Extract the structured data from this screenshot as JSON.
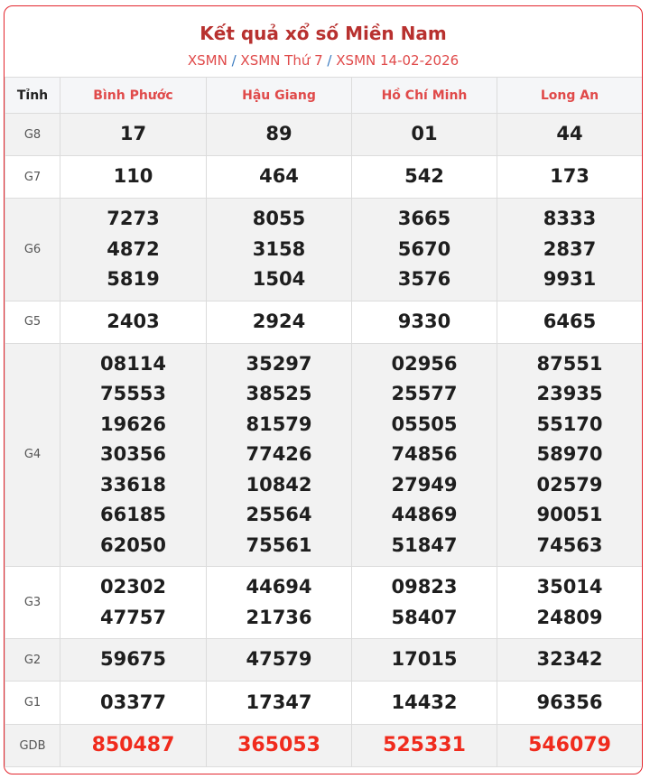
{
  "title": "Kết quả xổ số Miền Nam",
  "breadcrumb": [
    "XSMN",
    "XSMN Thứ 7",
    "XSMN 14-02-2026"
  ],
  "breadcrumb_sep": "/",
  "header": {
    "label": "Tỉnh",
    "provinces": [
      "Bình Phước",
      "Hậu Giang",
      "Hồ Chí Minh",
      "Long An"
    ]
  },
  "colors": {
    "accent": "#e3262e",
    "title": "#b8312f",
    "special": "#f02b1d"
  },
  "rows": [
    {
      "label": "G8",
      "values": [
        [
          "17"
        ],
        [
          "89"
        ],
        [
          "01"
        ],
        [
          "44"
        ]
      ]
    },
    {
      "label": "G7",
      "values": [
        [
          "110"
        ],
        [
          "464"
        ],
        [
          "542"
        ],
        [
          "173"
        ]
      ]
    },
    {
      "label": "G6",
      "values": [
        [
          "7273",
          "4872",
          "5819"
        ],
        [
          "8055",
          "3158",
          "1504"
        ],
        [
          "3665",
          "5670",
          "3576"
        ],
        [
          "8333",
          "2837",
          "9931"
        ]
      ]
    },
    {
      "label": "G5",
      "values": [
        [
          "2403"
        ],
        [
          "2924"
        ],
        [
          "9330"
        ],
        [
          "6465"
        ]
      ]
    },
    {
      "label": "G4",
      "values": [
        [
          "08114",
          "75553",
          "19626",
          "30356",
          "33618",
          "66185",
          "62050"
        ],
        [
          "35297",
          "38525",
          "81579",
          "77426",
          "10842",
          "25564",
          "75561"
        ],
        [
          "02956",
          "25577",
          "05505",
          "74856",
          "27949",
          "44869",
          "51847"
        ],
        [
          "87551",
          "23935",
          "55170",
          "58970",
          "02579",
          "90051",
          "74563"
        ]
      ]
    },
    {
      "label": "G3",
      "values": [
        [
          "02302",
          "47757"
        ],
        [
          "44694",
          "21736"
        ],
        [
          "09823",
          "58407"
        ],
        [
          "35014",
          "24809"
        ]
      ]
    },
    {
      "label": "G2",
      "values": [
        [
          "59675"
        ],
        [
          "47579"
        ],
        [
          "17015"
        ],
        [
          "32342"
        ]
      ]
    },
    {
      "label": "G1",
      "values": [
        [
          "03377"
        ],
        [
          "17347"
        ],
        [
          "14432"
        ],
        [
          "96356"
        ]
      ]
    },
    {
      "label": "GDB",
      "values": [
        [
          "850487"
        ],
        [
          "365053"
        ],
        [
          "525331"
        ],
        [
          "546079"
        ]
      ]
    }
  ]
}
